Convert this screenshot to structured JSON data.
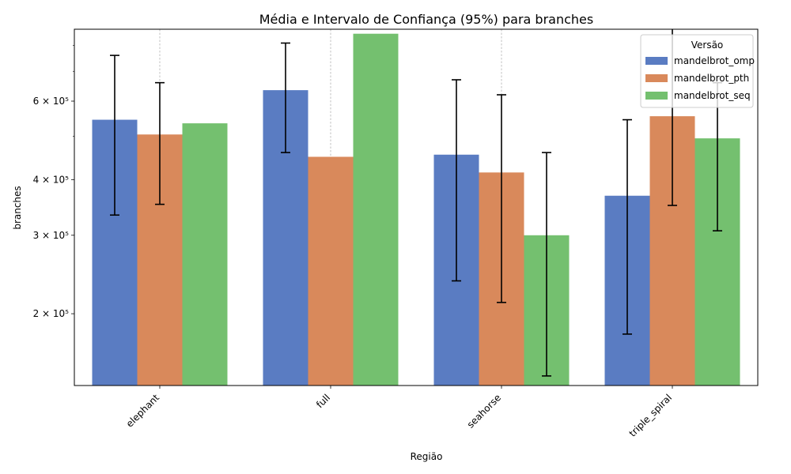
{
  "chart_data": {
    "type": "bar",
    "title": "Média e Intervalo de Confiança (95%) para branches",
    "xlabel": "Região",
    "ylabel": "branches",
    "yscale": "log",
    "ylim": [
      138000,
      870000
    ],
    "categories": [
      "elephant",
      "full",
      "seahorse",
      "triple_spiral"
    ],
    "yticks": [
      {
        "value": 200000,
        "label": "2 × 10⁵"
      },
      {
        "value": 300000,
        "label": "3 × 10⁵"
      },
      {
        "value": 400000,
        "label": "4 × 10⁵"
      },
      {
        "value": 600000,
        "label": "6 × 10⁵"
      }
    ],
    "minor_ticks": [
      500000,
      700000,
      800000
    ],
    "grid": "x-only dashed",
    "legend": {
      "title": "Versão",
      "placement": "top-right"
    },
    "series": [
      {
        "name": "mandelbrot_omp",
        "color": "#5a7cc2",
        "values": [
          545000,
          635000,
          455000,
          368000
        ],
        "ci_low": [
          333000,
          460000,
          237000,
          180000
        ],
        "ci_high": [
          760000,
          810000,
          670000,
          545000
        ]
      },
      {
        "name": "mandelbrot_pth",
        "color": "#d9895b",
        "values": [
          505000,
          450000,
          415000,
          555000
        ],
        "ci_low": [
          352000,
          null,
          212000,
          350000
        ],
        "ci_high": [
          660000,
          null,
          620000,
          null
        ]
      },
      {
        "name": "mandelbrot_seq",
        "color": "#74c06f",
        "values": [
          535000,
          850000,
          300000,
          495000
        ],
        "ci_low": [
          null,
          null,
          145000,
          307000
        ],
        "ci_high": [
          null,
          null,
          460000,
          660000
        ]
      }
    ]
  }
}
